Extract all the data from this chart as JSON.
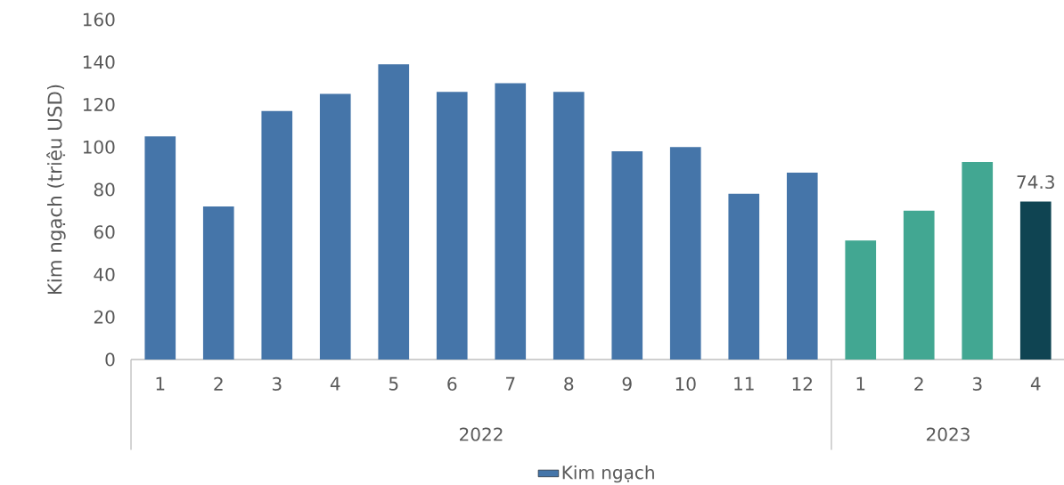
{
  "chart_data": {
    "type": "bar",
    "ylabel": "Kim ngạch (triệu USD)",
    "categories": [
      "1",
      "2",
      "3",
      "4",
      "5",
      "6",
      "7",
      "8",
      "9",
      "10",
      "11",
      "12",
      "1",
      "2",
      "3",
      "4"
    ],
    "series": [
      {
        "name": "Kim ngạch",
        "color": "#4575a9",
        "values": [
          105,
          72,
          117,
          125,
          139,
          126,
          130,
          126,
          98,
          100,
          78,
          88,
          56,
          70,
          93,
          74.3
        ],
        "colors": [
          "#4575a9",
          "#4575a9",
          "#4575a9",
          "#4575a9",
          "#4575a9",
          "#4575a9",
          "#4575a9",
          "#4575a9",
          "#4575a9",
          "#4575a9",
          "#4575a9",
          "#4575a9",
          "#42a792",
          "#42a792",
          "#42a792",
          "#0f4452"
        ],
        "value_labels": [
          null,
          null,
          null,
          null,
          null,
          null,
          null,
          null,
          null,
          null,
          null,
          null,
          null,
          null,
          null,
          "74.3"
        ]
      }
    ],
    "ylim": [
      0,
      160
    ],
    "yticks": [
      0,
      20,
      40,
      60,
      80,
      100,
      120,
      140,
      160
    ],
    "annotations": [
      "2022",
      "2023"
    ],
    "legend": "bottom"
  }
}
